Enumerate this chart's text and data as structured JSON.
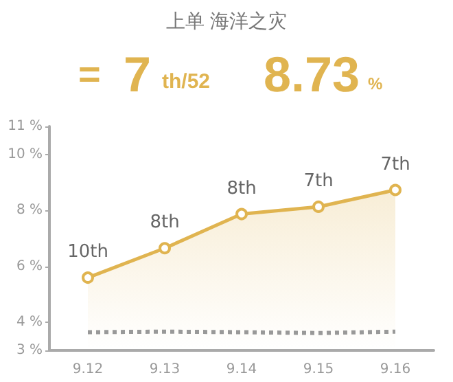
{
  "chart_data": {
    "type": "area",
    "title": "上单 海洋之灾",
    "annotations": [
      "=",
      "7",
      "th/52",
      "8.73",
      "%",
      {
        "text": "10th",
        "x": "9.12",
        "y": 5.6
      },
      {
        "text": "8th",
        "x": "9.13",
        "y": 6.65
      },
      {
        "text": "8th",
        "x": "9.14",
        "y": 7.87
      },
      {
        "text": "7th",
        "x": "9.15",
        "y": 8.13
      },
      {
        "text": "7th",
        "x": "9.16",
        "y": 8.73
      }
    ],
    "categories": [
      "9.12",
      "9.13",
      "9.14",
      "9.15",
      "9.16"
    ],
    "series": [
      {
        "color": "#e0b450",
        "values": [
          5.6,
          6.65,
          7.87,
          8.13,
          8.73
        ],
        "marker": "circle",
        "line_style": "solid"
      },
      {
        "type": "line",
        "color": "#999999",
        "values": [
          3.65,
          3.67,
          3.65,
          3.62,
          3.67
        ],
        "marker": "none",
        "line_style": "dotted"
      }
    ],
    "ylim": [
      3,
      11
    ],
    "yticks": [
      {
        "value": 3,
        "label": "3 %"
      },
      {
        "value": 4,
        "label": "4 %"
      },
      {
        "value": 6,
        "label": "6 %"
      },
      {
        "value": 8,
        "label": "8 %"
      },
      {
        "value": 10,
        "label": "10 %"
      },
      {
        "value": 11,
        "label": "11 %"
      }
    ],
    "grid": false
  }
}
